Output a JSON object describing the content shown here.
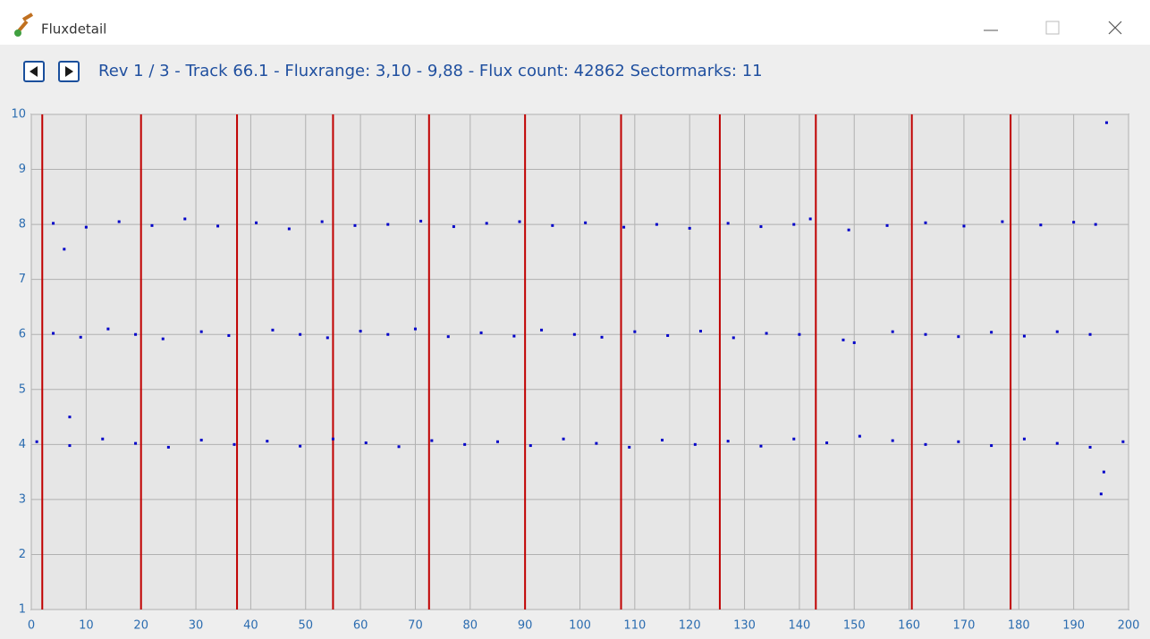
{
  "window": {
    "title": "Fluxdetail"
  },
  "header": {
    "info": "Rev 1 / 3 - Track 66.1 - Fluxrange: 3,10 - 9,88 - Flux count: 42862 Sectormarks: 11"
  },
  "chart_data": {
    "type": "scatter",
    "color": "#0000c8",
    "grid": true,
    "xlim": [
      0,
      200
    ],
    "ylim": [
      1,
      10
    ],
    "xticks": [
      0,
      10,
      20,
      30,
      40,
      50,
      60,
      70,
      80,
      90,
      100,
      110,
      120,
      130,
      140,
      150,
      160,
      170,
      180,
      190,
      200
    ],
    "yticks": [
      1,
      2,
      3,
      4,
      5,
      6,
      7,
      8,
      9,
      10
    ],
    "sector_marks": [
      2,
      20,
      37.5,
      55,
      72.5,
      90,
      107.5,
      125.5,
      143,
      160.5,
      178.5
    ],
    "sector_color": "#c00000",
    "x": [
      1,
      7,
      13,
      19,
      25,
      31,
      37,
      43,
      49,
      55,
      61,
      67,
      73,
      79,
      85,
      91,
      97,
      103,
      109,
      115,
      121,
      127,
      133,
      139,
      145,
      151,
      157,
      163,
      169,
      175,
      181,
      187,
      193,
      199,
      4,
      9,
      14,
      19,
      24,
      31,
      36,
      44,
      49,
      54,
      60,
      65,
      70,
      76,
      82,
      88,
      93,
      99,
      104,
      110,
      116,
      122,
      128,
      134,
      140,
      148,
      150,
      157,
      163,
      169,
      175,
      181,
      187,
      193,
      4,
      10,
      16,
      22,
      28,
      34,
      41,
      47,
      53,
      59,
      65,
      71,
      77,
      83,
      89,
      95,
      101,
      108,
      114,
      120,
      127,
      133,
      139,
      142,
      149,
      156,
      163,
      170,
      177,
      184,
      190,
      194,
      195,
      195.5,
      196,
      6,
      7
    ],
    "values": [
      4.05,
      3.98,
      4.1,
      4.02,
      3.95,
      4.08,
      4.0,
      4.06,
      3.97,
      4.1,
      4.03,
      3.96,
      4.07,
      4.0,
      4.05,
      3.98,
      4.1,
      4.02,
      3.95,
      4.08,
      4.0,
      4.06,
      3.97,
      4.1,
      4.03,
      4.15,
      4.07,
      4.0,
      4.05,
      3.98,
      4.1,
      4.02,
      3.95,
      4.05,
      6.02,
      5.95,
      6.1,
      6.0,
      5.92,
      6.05,
      5.98,
      6.08,
      6.0,
      5.94,
      6.06,
      6.0,
      6.1,
      5.96,
      6.03,
      5.97,
      6.08,
      6.0,
      5.95,
      6.05,
      5.98,
      6.06,
      5.94,
      6.02,
      6.0,
      5.9,
      5.85,
      6.05,
      6.0,
      5.96,
      6.04,
      5.97,
      6.05,
      6.0,
      8.02,
      7.95,
      8.05,
      7.98,
      8.1,
      7.97,
      8.03,
      7.92,
      8.05,
      7.98,
      8.0,
      8.06,
      7.96,
      8.02,
      8.05,
      7.98,
      8.03,
      7.95,
      8.0,
      7.93,
      8.02,
      7.96,
      8.0,
      8.1,
      7.9,
      7.98,
      8.03,
      7.97,
      8.05,
      7.99,
      8.04,
      8.0,
      3.1,
      3.5,
      9.85,
      7.55,
      4.5
    ]
  }
}
